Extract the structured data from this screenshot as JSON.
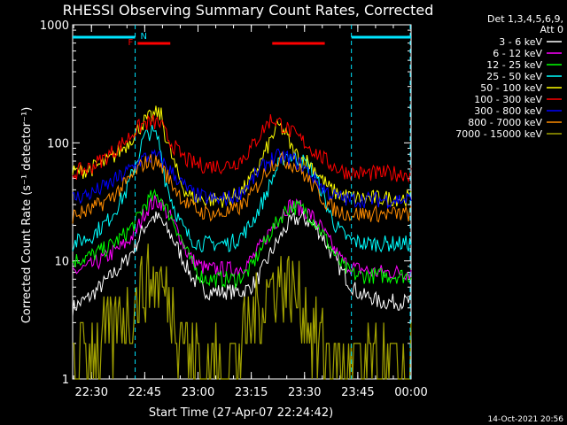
{
  "chart_data": {
    "type": "line",
    "title": "RHESSI Observing Summary Count Rates, Corrected",
    "xlabel": "Start Time (27-Apr-07 22:24:42)",
    "ylabel": "Corrected Count Rate (s⁻¹ detector⁻¹)",
    "yscale": "log",
    "ylim": [
      1,
      1000
    ],
    "xlim_minutes": [
      0,
      95.3
    ],
    "x_tick_labels": [
      "22:30",
      "22:45",
      "23:00",
      "23:15",
      "23:30",
      "23:45",
      "00:00"
    ],
    "x_tick_minutes": [
      5.3,
      20.3,
      35.3,
      50.3,
      65.3,
      80.3,
      95.3
    ],
    "y_tick_labels": [
      "1",
      "10",
      "100",
      "1000"
    ],
    "y_tick_values": [
      1,
      10,
      100,
      1000
    ],
    "legend_title": [
      "Det 1,3,4,5,6,9,",
      "Att 0"
    ],
    "legend_position": "right, outside",
    "date_stamp": "14-Oct-2021 20:56",
    "flags": {
      "N_label": "N",
      "F_label": "F",
      "n_color": "#00e5ff",
      "f_color": "#ff0000",
      "night_segments": [
        [
          0,
          17.6
        ],
        [
          78.5,
          95.3
        ]
      ],
      "flare_segments": [
        [
          18.3,
          27.5
        ],
        [
          56.2,
          71.0
        ]
      ],
      "night_boundaries": [
        17.6,
        78.5
      ]
    },
    "time_minutes": [
      0,
      5,
      10,
      15,
      18,
      20,
      22,
      24,
      25,
      26,
      28,
      30,
      32,
      34,
      36,
      38,
      40,
      42,
      44,
      46,
      48,
      50,
      52,
      54,
      56,
      58,
      60,
      62,
      64,
      66,
      68,
      70,
      72,
      74,
      76,
      78,
      80,
      82,
      84,
      86,
      88,
      90,
      92,
      95
    ],
    "series": [
      {
        "name": "3 - 6 keV",
        "color": "#ffffff",
        "values": [
          4,
          5,
          7,
          10,
          14,
          19,
          23,
          23,
          22,
          19,
          16,
          12,
          9,
          7,
          6,
          5.5,
          5.5,
          5.5,
          5.5,
          5.5,
          5.5,
          6,
          7,
          9,
          12,
          15,
          19,
          22,
          23,
          22,
          20,
          17,
          13,
          10,
          8,
          6.5,
          5.5,
          5,
          5,
          4.5,
          4.5,
          4.5,
          4.5,
          4.5
        ]
      },
      {
        "name": "6 - 12 keV",
        "color": "#ff00ff",
        "values": [
          8,
          9,
          11,
          14,
          18,
          25,
          30,
          32,
          31,
          27,
          22,
          17,
          12,
          10,
          9,
          8.5,
          8.5,
          8.5,
          8.5,
          8.5,
          9,
          10,
          12,
          15,
          19,
          23,
          28,
          30,
          28,
          26,
          23,
          19,
          15,
          12,
          10,
          9,
          8.5,
          8.5,
          8,
          8,
          8,
          8,
          8,
          8
        ]
      },
      {
        "name": "12 - 25 keV",
        "color": "#00ff00",
        "values": [
          10,
          11,
          13,
          17,
          22,
          29,
          34,
          35,
          34,
          29,
          23,
          17,
          12,
          9,
          7.5,
          7,
          7,
          7,
          7,
          7,
          7.5,
          8.5,
          11,
          14,
          18,
          22,
          27,
          29,
          28,
          26,
          22,
          18,
          14,
          11,
          9,
          8,
          7.5,
          7.5,
          7.5,
          7.5,
          7.5,
          7.5,
          7.5,
          7.5
        ]
      },
      {
        "name": "25 - 50 keV",
        "color": "#00ffff",
        "values": [
          14,
          16,
          22,
          38,
          70,
          110,
          125,
          110,
          80,
          50,
          32,
          22,
          17,
          15,
          14,
          14,
          14,
          14,
          14,
          15,
          17,
          20,
          26,
          34,
          48,
          65,
          80,
          75,
          72,
          66,
          55,
          40,
          27,
          20,
          17,
          15,
          14.5,
          14,
          14,
          14,
          14,
          14,
          14,
          14
        ]
      },
      {
        "name": "50 - 100 keV",
        "color": "#ffff00",
        "values": [
          56,
          60,
          70,
          95,
          125,
          150,
          165,
          180,
          170,
          120,
          75,
          50,
          38,
          34,
          33,
          33,
          33,
          33,
          34,
          36,
          40,
          48,
          60,
          80,
          110,
          140,
          120,
          85,
          75,
          70,
          62,
          50,
          42,
          38,
          36,
          35,
          34,
          34,
          34,
          34,
          34,
          34,
          34,
          34
        ]
      },
      {
        "name": "100 - 300 keV",
        "color": "#ff0000",
        "values": [
          55,
          62,
          78,
          105,
          130,
          145,
          148,
          148,
          140,
          120,
          98,
          82,
          72,
          67,
          65,
          64,
          64,
          64,
          65,
          68,
          75,
          88,
          108,
          135,
          160,
          150,
          135,
          120,
          108,
          97,
          85,
          76,
          68,
          62,
          58,
          56,
          55,
          55,
          55,
          55,
          55,
          55,
          55,
          55
        ]
      },
      {
        "name": "300 - 800 keV",
        "color": "#0000ff",
        "values": [
          34,
          37,
          44,
          56,
          67,
          74,
          76,
          75,
          72,
          65,
          56,
          48,
          41,
          37,
          35,
          34,
          33,
          33,
          34,
          36,
          40,
          46,
          55,
          65,
          73,
          76,
          75,
          72,
          66,
          58,
          50,
          43,
          38,
          35,
          34,
          33,
          33,
          33,
          33,
          33,
          33,
          33,
          33,
          33
        ]
      },
      {
        "name": "800 - 7000 keV",
        "color": "#ff8c00",
        "values": [
          24,
          27,
          33,
          45,
          58,
          67,
          70,
          68,
          64,
          56,
          45,
          37,
          31,
          28,
          26,
          25.5,
          25,
          25,
          26,
          27,
          30,
          35,
          43,
          55,
          66,
          72,
          70,
          66,
          59,
          50,
          42,
          35,
          30,
          27,
          26,
          25,
          25,
          25,
          25,
          25,
          25,
          25,
          25,
          25
        ]
      },
      {
        "name": "7000 - 15000 keV",
        "color": "#a0a000",
        "values": [
          1.5,
          1.8,
          2.3,
          3.3,
          4.6,
          6,
          6.8,
          6.5,
          6,
          5,
          3.8,
          2.8,
          2,
          1.6,
          1.3,
          1.2,
          1.2,
          1.2,
          1.3,
          1.5,
          2,
          2.8,
          4,
          5.2,
          6.3,
          6.8,
          6.5,
          5.6,
          4.5,
          3.4,
          2.5,
          1.9,
          1.5,
          1.3,
          1.2,
          1.2,
          1.2,
          1.2,
          1.2,
          1.2,
          1.2,
          1.2,
          1.2,
          1.2
        ]
      }
    ]
  }
}
